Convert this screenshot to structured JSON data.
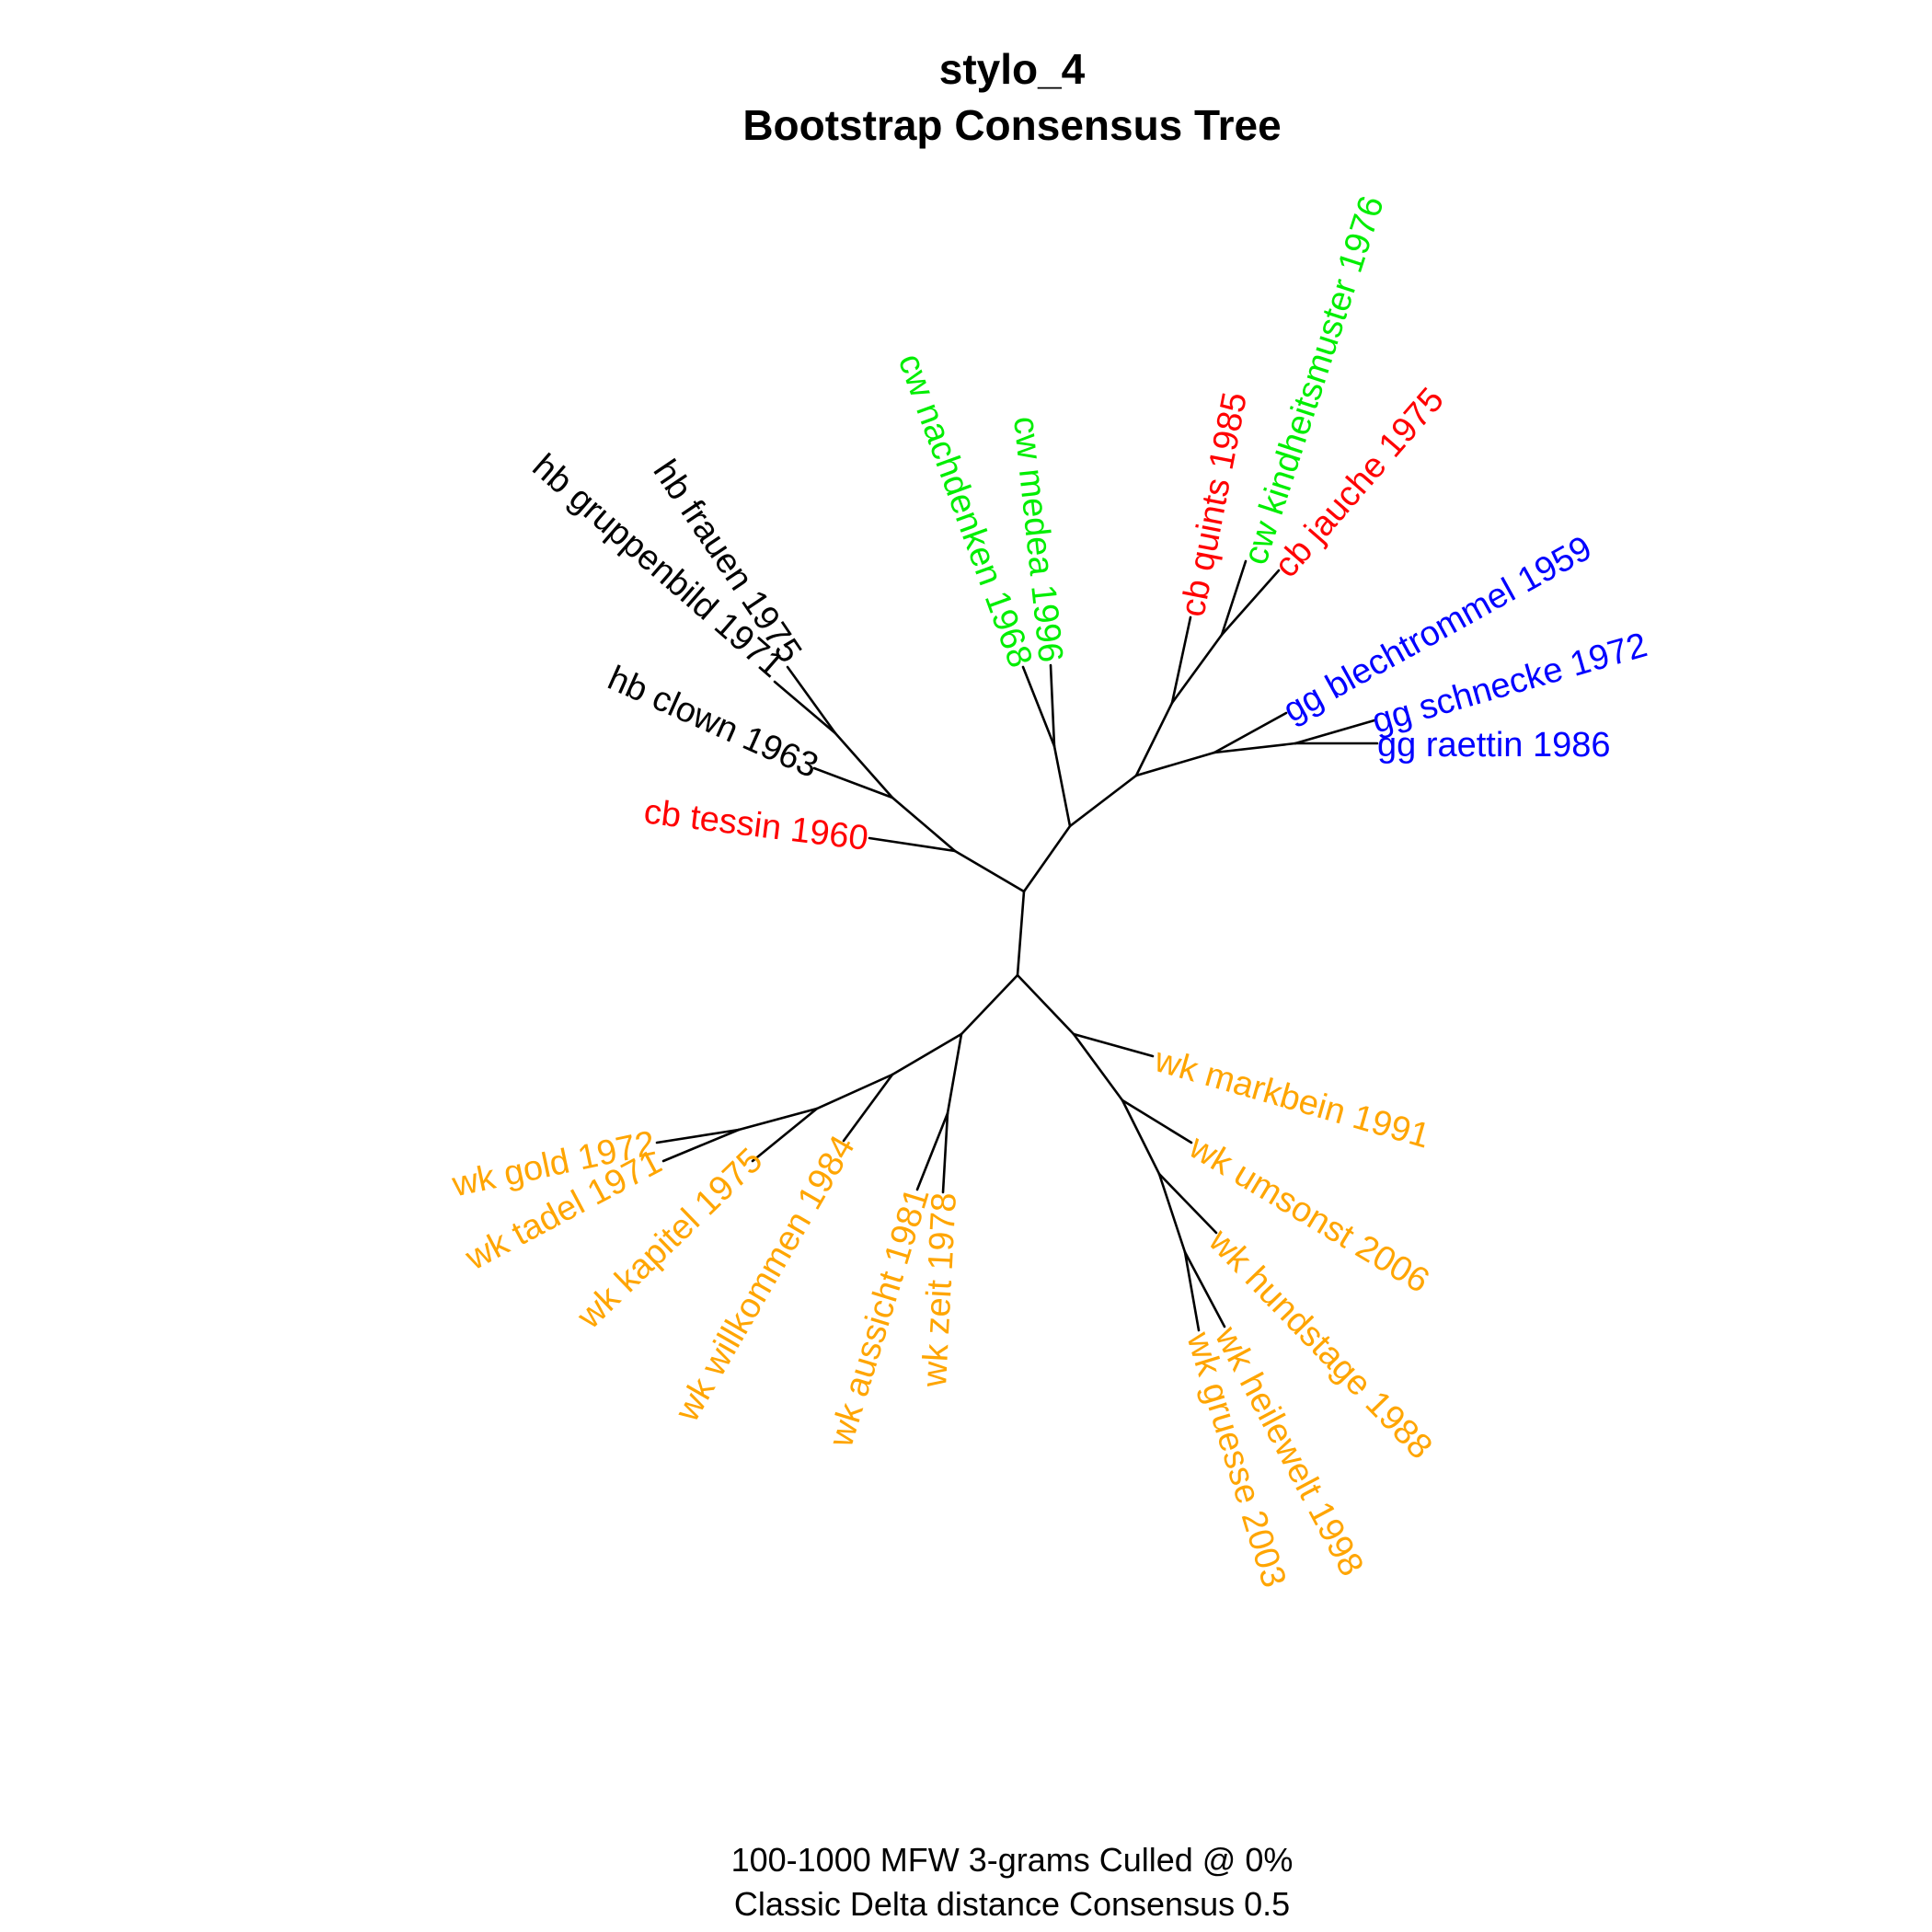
{
  "title": {
    "line1": "stylo_4",
    "line2": "Bootstrap Consensus Tree"
  },
  "caption": {
    "line1": "100-1000 MFW 3-grams Culled @ 0%",
    "line2": "Classic Delta distance Consensus 0.5"
  },
  "colors": {
    "hb": "#000000",
    "cw": "#00ee00",
    "cb": "#ff0000",
    "gg": "#0000ff",
    "wk": "#ffa500",
    "branch": "#000000"
  },
  "leaves": [
    {
      "id": "hb_frauen",
      "label": "hb frauen 1975",
      "group": "hb"
    },
    {
      "id": "hb_gruppenbild",
      "label": "hb gruppenbild 1971",
      "group": "hb"
    },
    {
      "id": "hb_clown",
      "label": "hb clown 1963",
      "group": "hb"
    },
    {
      "id": "cb_tessin",
      "label": "cb tessin 1960",
      "group": "cb"
    },
    {
      "id": "cw_nachdenken",
      "label": "cw nachdenken 1968",
      "group": "cw"
    },
    {
      "id": "cw_medea",
      "label": "cw medea 1996",
      "group": "cw"
    },
    {
      "id": "cb_quints",
      "label": "cb quints 1985",
      "group": "cb"
    },
    {
      "id": "cw_kindheitsmuster",
      "label": "cw kindheitsmuster 1976",
      "group": "cw"
    },
    {
      "id": "cb_jauche",
      "label": "cb jauche 1975",
      "group": "cb"
    },
    {
      "id": "gg_blechtrommel",
      "label": "gg blechtrommel 1959",
      "group": "gg"
    },
    {
      "id": "gg_schnecke",
      "label": "gg schnecke 1972",
      "group": "gg"
    },
    {
      "id": "gg_raettin",
      "label": "gg raettin 1986",
      "group": "gg"
    },
    {
      "id": "wk_markbein",
      "label": "wk markbein 1991",
      "group": "wk"
    },
    {
      "id": "wk_umsonst",
      "label": "wk umsonst 2006",
      "group": "wk"
    },
    {
      "id": "wk_hundstage",
      "label": "wk hundstage 1988",
      "group": "wk"
    },
    {
      "id": "wk_heilewelt",
      "label": "wk heilewelt 1998",
      "group": "wk"
    },
    {
      "id": "wk_gruesse",
      "label": "wk gruesse 2003",
      "group": "wk"
    },
    {
      "id": "wk_zeit",
      "label": "wk zeit 1978",
      "group": "wk"
    },
    {
      "id": "wk_aussicht",
      "label": "wk aussicht 1981",
      "group": "wk"
    },
    {
      "id": "wk_willkommen",
      "label": "wk willkommen 1984",
      "group": "wk"
    },
    {
      "id": "wk_kapitel",
      "label": "wk kapitel 1975",
      "group": "wk"
    },
    {
      "id": "wk_tadel",
      "label": "wk tadel 1971",
      "group": "wk"
    },
    {
      "id": "wk_gold",
      "label": "wk gold 1972",
      "group": "wk"
    }
  ]
}
